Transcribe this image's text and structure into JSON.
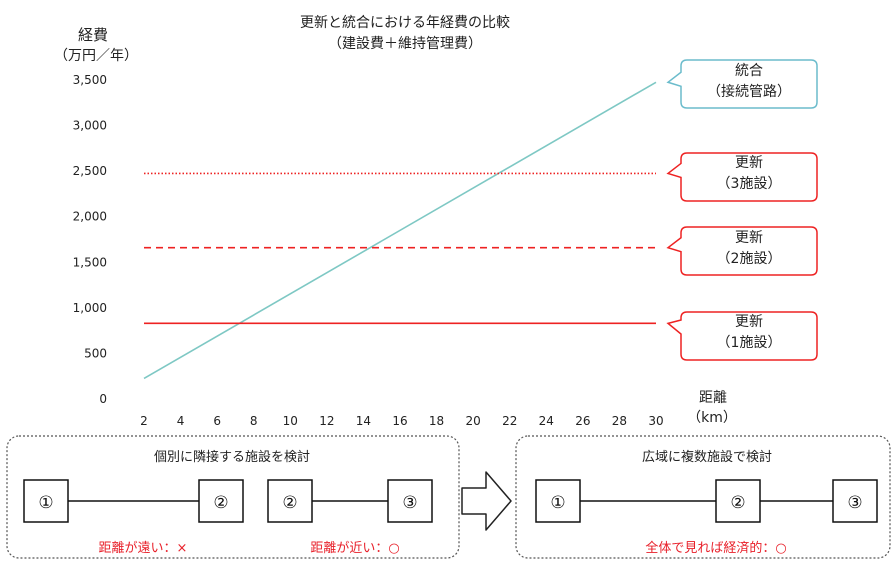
{
  "chart_data": {
    "type": "line",
    "title": "更新と統合における年経費の比較",
    "subtitle": "（建設費＋維持管理費）",
    "ylabel": "経費",
    "ylabel_unit": "（万円／年）",
    "xlabel": "距離",
    "xlabel_unit": "（km）",
    "x_ticks": [
      2,
      4,
      6,
      8,
      10,
      12,
      14,
      16,
      18,
      20,
      22,
      24,
      26,
      28,
      30
    ],
    "y_ticks": [
      "0",
      "500",
      "1,000",
      "1,500",
      "2,000",
      "2,500",
      "3,000",
      "3,500"
    ],
    "y_tick_values": [
      0,
      500,
      1000,
      1500,
      2000,
      2500,
      3000,
      3500
    ],
    "xlim": [
      2,
      30
    ],
    "ylim": [
      0,
      3500
    ],
    "grid": false,
    "series": [
      {
        "name": "統合（接続管路）",
        "style": "solid",
        "color": "#7ec8c4",
        "x": [
          2,
          30
        ],
        "y": [
          225,
          3475
        ]
      },
      {
        "name": "更新（3施設）",
        "style": "dotted",
        "color": "#ee2222",
        "x": [
          2,
          30
        ],
        "y": [
          2475,
          2475
        ]
      },
      {
        "name": "更新（2施設）",
        "style": "dashed",
        "color": "#ee2222",
        "x": [
          2,
          30
        ],
        "y": [
          1660,
          1660
        ]
      },
      {
        "name": "更新（1施設）",
        "style": "solid",
        "color": "#ee2222",
        "x": [
          2,
          30
        ],
        "y": [
          830,
          830
        ]
      }
    ],
    "annotations": [
      {
        "id": "togo",
        "lines": [
          "統合",
          "（接続管路）"
        ],
        "border": "#6bbccc",
        "series": 0
      },
      {
        "id": "koshin3",
        "lines": [
          "更新",
          "（3施設）"
        ],
        "border": "#ee2222",
        "series": 1
      },
      {
        "id": "koshin2",
        "lines": [
          "更新",
          "（2施設）"
        ],
        "border": "#ee2222",
        "series": 2
      },
      {
        "id": "koshin1",
        "lines": [
          "更新",
          "（1施設）"
        ],
        "border": "#ee2222",
        "series": 3
      }
    ]
  },
  "bottom": {
    "left_panel": {
      "title": "個別に隣接する施設を検討",
      "pair_a": {
        "from": "①",
        "to": "②",
        "note": "距離が遠い：×"
      },
      "pair_b": {
        "from": "②",
        "to": "③",
        "note": "距離が近い：○"
      }
    },
    "right_panel": {
      "title": "広域に複数施設で検討",
      "nodes": [
        "①",
        "②",
        "③"
      ],
      "note": "全体で見れば経済的：○"
    }
  },
  "colors": {
    "axis_text": "#222222",
    "note_red": "#e8202a",
    "panel_border": "#555555",
    "box_border": "#111111"
  }
}
